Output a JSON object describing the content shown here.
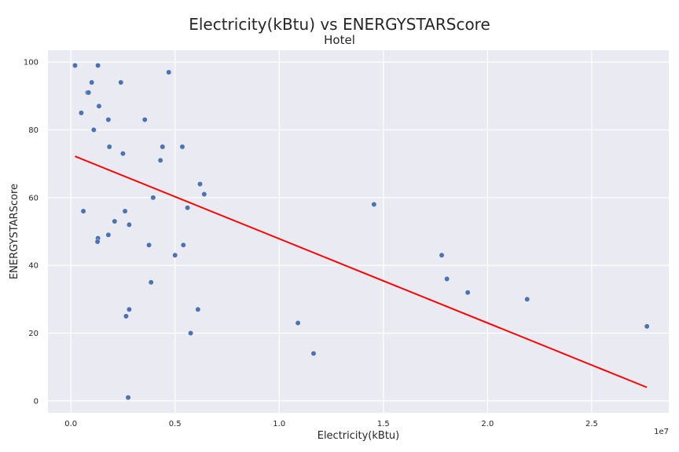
{
  "chart_data": {
    "type": "scatter",
    "title": "Electricity(kBtu) vs ENERGYSTARScore",
    "subtitle": "Hotel",
    "xlabel": "Electricity(kBtu)",
    "ylabel": "ENERGYSTARScore",
    "x_offset_text": "1e7",
    "xlim": [
      -0.11,
      2.87
    ],
    "ylim": [
      -3.5,
      103.5
    ],
    "x_ticks": [
      0.0,
      0.5,
      1.0,
      1.5,
      2.0,
      2.5
    ],
    "x_tick_labels": [
      "0.0",
      "0.5",
      "1.0",
      "1.5",
      "2.0",
      "2.5"
    ],
    "y_ticks": [
      0,
      20,
      40,
      60,
      80,
      100
    ],
    "y_tick_labels": [
      "0",
      "20",
      "40",
      "60",
      "80",
      "100"
    ],
    "grid": true,
    "points": [
      {
        "x": 0.02,
        "y": 99
      },
      {
        "x": 0.13,
        "y": 99
      },
      {
        "x": 0.47,
        "y": 97
      },
      {
        "x": 0.1,
        "y": 94
      },
      {
        "x": 0.24,
        "y": 94
      },
      {
        "x": 0.08,
        "y": 91
      },
      {
        "x": 0.085,
        "y": 91
      },
      {
        "x": 0.135,
        "y": 87
      },
      {
        "x": 0.05,
        "y": 85
      },
      {
        "x": 0.18,
        "y": 83
      },
      {
        "x": 0.355,
        "y": 83
      },
      {
        "x": 0.11,
        "y": 80
      },
      {
        "x": 0.185,
        "y": 75
      },
      {
        "x": 0.44,
        "y": 75
      },
      {
        "x": 0.535,
        "y": 75
      },
      {
        "x": 0.25,
        "y": 73
      },
      {
        "x": 0.43,
        "y": 71
      },
      {
        "x": 0.62,
        "y": 64
      },
      {
        "x": 0.64,
        "y": 61
      },
      {
        "x": 0.395,
        "y": 60
      },
      {
        "x": 1.455,
        "y": 58
      },
      {
        "x": 0.56,
        "y": 57
      },
      {
        "x": 0.06,
        "y": 56
      },
      {
        "x": 0.26,
        "y": 56
      },
      {
        "x": 0.21,
        "y": 53
      },
      {
        "x": 0.28,
        "y": 52
      },
      {
        "x": 0.18,
        "y": 49
      },
      {
        "x": 0.13,
        "y": 48
      },
      {
        "x": 0.128,
        "y": 47
      },
      {
        "x": 0.375,
        "y": 46
      },
      {
        "x": 0.54,
        "y": 46
      },
      {
        "x": 0.5,
        "y": 43
      },
      {
        "x": 1.78,
        "y": 43
      },
      {
        "x": 1.805,
        "y": 36
      },
      {
        "x": 0.385,
        "y": 35
      },
      {
        "x": 1.905,
        "y": 32
      },
      {
        "x": 2.19,
        "y": 30
      },
      {
        "x": 0.28,
        "y": 27
      },
      {
        "x": 0.61,
        "y": 27
      },
      {
        "x": 0.265,
        "y": 25
      },
      {
        "x": 1.09,
        "y": 23
      },
      {
        "x": 2.765,
        "y": 22
      },
      {
        "x": 0.575,
        "y": 20
      },
      {
        "x": 1.165,
        "y": 14
      },
      {
        "x": 0.275,
        "y": 1
      }
    ],
    "regression_line": {
      "x": [
        0.02,
        2.765
      ],
      "y": [
        72.2,
        4.0
      ]
    },
    "colors": {
      "points": "#4c72b0",
      "regression": "#ff0000",
      "plot_background": "#eaeaf2",
      "grid": "#ffffff"
    }
  }
}
